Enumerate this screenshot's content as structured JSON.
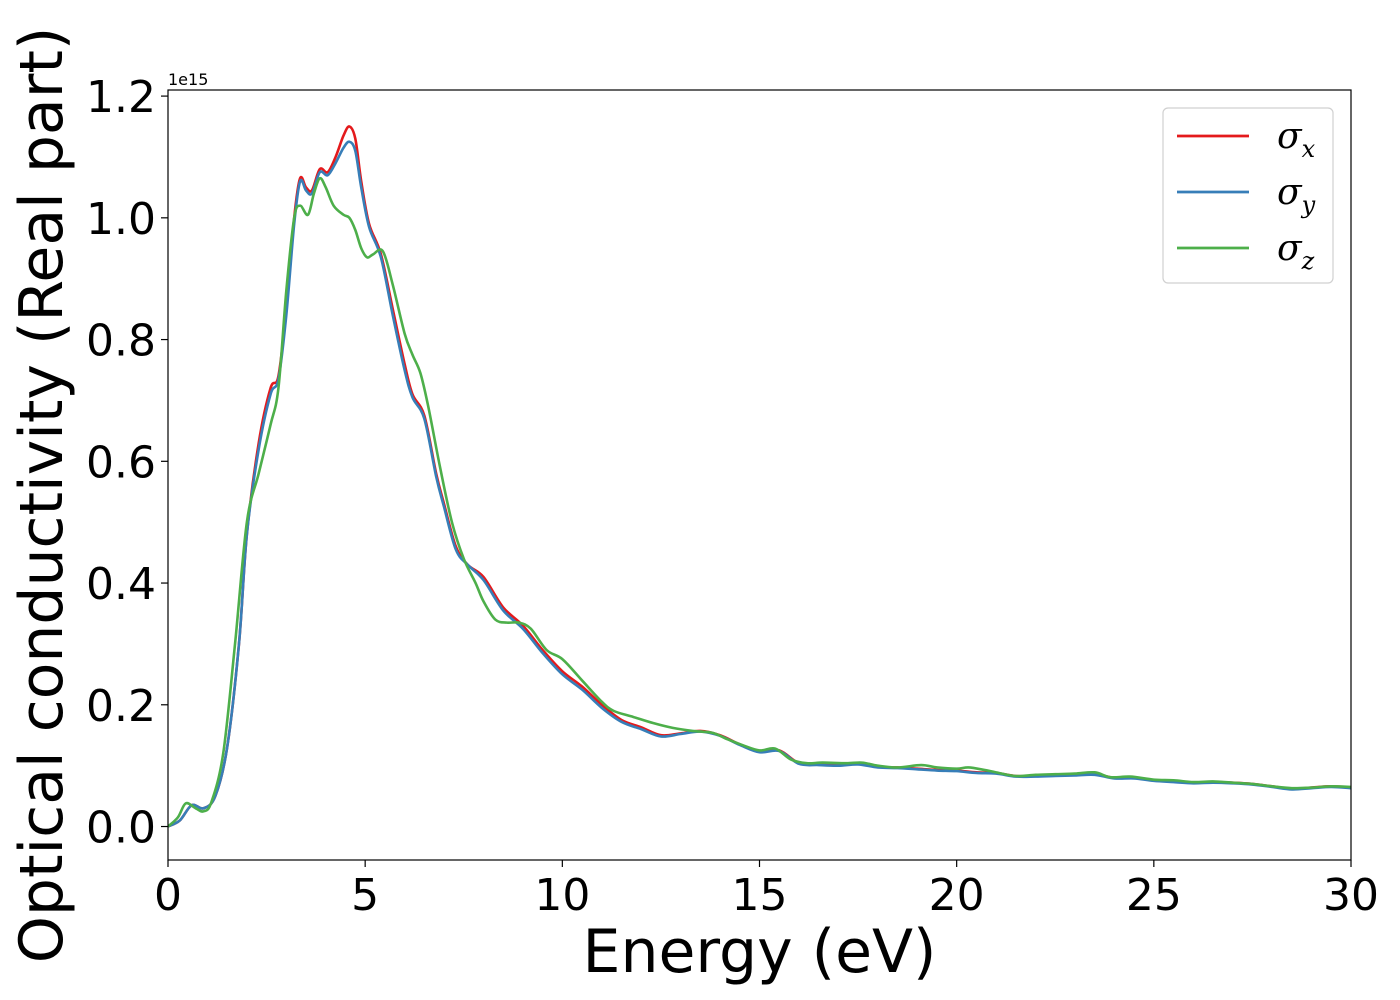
{
  "chart_data": {
    "type": "line",
    "xlabel": "Energy (eV)",
    "ylabel": "Optical conductivity (Real part)",
    "y_offset_label": "1e15",
    "xlim": [
      0,
      30
    ],
    "ylim": [
      -0.055,
      1.21
    ],
    "x_ticks": [
      0,
      5,
      10,
      15,
      20,
      25,
      30
    ],
    "x_tick_labels": [
      "0",
      "5",
      "10",
      "15",
      "20",
      "25",
      "30"
    ],
    "y_ticks": [
      0.0,
      0.2,
      0.4,
      0.6,
      0.8,
      1.0,
      1.2
    ],
    "y_tick_labels": [
      "0.0",
      "0.2",
      "0.4",
      "0.6",
      "0.8",
      "1.0",
      "1.2"
    ],
    "grid": false,
    "legend_position": "top-right",
    "series": [
      {
        "name": "σx",
        "symbol": "σ",
        "subscript": "x",
        "color": "#e41a1c",
        "points": [
          [
            0,
            0
          ],
          [
            0.3,
            0.01
          ],
          [
            0.6,
            0.035
          ],
          [
            0.9,
            0.03
          ],
          [
            1.2,
            0.05
          ],
          [
            1.5,
            0.13
          ],
          [
            1.8,
            0.3
          ],
          [
            2.0,
            0.48
          ],
          [
            2.3,
            0.63
          ],
          [
            2.6,
            0.72
          ],
          [
            2.8,
            0.74
          ],
          [
            3.0,
            0.85
          ],
          [
            3.2,
            1.0
          ],
          [
            3.35,
            1.065
          ],
          [
            3.5,
            1.05
          ],
          [
            3.65,
            1.045
          ],
          [
            3.85,
            1.08
          ],
          [
            4.05,
            1.075
          ],
          [
            4.25,
            1.1
          ],
          [
            4.45,
            1.135
          ],
          [
            4.6,
            1.15
          ],
          [
            4.75,
            1.13
          ],
          [
            4.9,
            1.06
          ],
          [
            5.1,
            0.99
          ],
          [
            5.4,
            0.94
          ],
          [
            5.7,
            0.85
          ],
          [
            6.0,
            0.76
          ],
          [
            6.2,
            0.71
          ],
          [
            6.5,
            0.675
          ],
          [
            6.8,
            0.58
          ],
          [
            7.0,
            0.53
          ],
          [
            7.3,
            0.46
          ],
          [
            7.6,
            0.43
          ],
          [
            8.0,
            0.41
          ],
          [
            8.5,
            0.36
          ],
          [
            9.0,
            0.33
          ],
          [
            9.5,
            0.29
          ],
          [
            10.0,
            0.255
          ],
          [
            10.5,
            0.23
          ],
          [
            11.0,
            0.2
          ],
          [
            11.5,
            0.175
          ],
          [
            12.0,
            0.163
          ],
          [
            12.5,
            0.15
          ],
          [
            13.0,
            0.153
          ],
          [
            13.5,
            0.157
          ],
          [
            14.0,
            0.15
          ],
          [
            14.5,
            0.135
          ],
          [
            15.0,
            0.123
          ],
          [
            15.5,
            0.125
          ],
          [
            16.0,
            0.104
          ],
          [
            16.5,
            0.102
          ],
          [
            17.0,
            0.101
          ],
          [
            17.5,
            0.103
          ],
          [
            18.0,
            0.098
          ],
          [
            18.5,
            0.097
          ],
          [
            19.0,
            0.095
          ],
          [
            19.5,
            0.093
          ],
          [
            20.0,
            0.092
          ],
          [
            20.5,
            0.089
          ],
          [
            21.0,
            0.088
          ],
          [
            21.5,
            0.083
          ],
          [
            22.0,
            0.083
          ],
          [
            22.5,
            0.084
          ],
          [
            23.0,
            0.085
          ],
          [
            23.5,
            0.086
          ],
          [
            24.0,
            0.08
          ],
          [
            24.5,
            0.08
          ],
          [
            25.0,
            0.076
          ],
          [
            25.5,
            0.074
          ],
          [
            26.0,
            0.072
          ],
          [
            26.5,
            0.073
          ],
          [
            27.0,
            0.072
          ],
          [
            27.5,
            0.07
          ],
          [
            28.0,
            0.066
          ],
          [
            28.5,
            0.062
          ],
          [
            29.0,
            0.064
          ],
          [
            29.5,
            0.066
          ],
          [
            30.0,
            0.064
          ]
        ]
      },
      {
        "name": "σy",
        "symbol": "σ",
        "subscript": "y",
        "color": "#377eb8",
        "points": [
          [
            0,
            0
          ],
          [
            0.3,
            0.01
          ],
          [
            0.6,
            0.035
          ],
          [
            0.9,
            0.03
          ],
          [
            1.2,
            0.05
          ],
          [
            1.5,
            0.13
          ],
          [
            1.8,
            0.3
          ],
          [
            2.0,
            0.48
          ],
          [
            2.3,
            0.62
          ],
          [
            2.6,
            0.71
          ],
          [
            2.8,
            0.735
          ],
          [
            3.0,
            0.84
          ],
          [
            3.2,
            0.99
          ],
          [
            3.35,
            1.06
          ],
          [
            3.5,
            1.045
          ],
          [
            3.65,
            1.04
          ],
          [
            3.85,
            1.075
          ],
          [
            4.05,
            1.07
          ],
          [
            4.25,
            1.09
          ],
          [
            4.45,
            1.115
          ],
          [
            4.6,
            1.125
          ],
          [
            4.75,
            1.11
          ],
          [
            4.9,
            1.05
          ],
          [
            5.1,
            0.985
          ],
          [
            5.4,
            0.935
          ],
          [
            5.7,
            0.84
          ],
          [
            6.0,
            0.75
          ],
          [
            6.2,
            0.705
          ],
          [
            6.5,
            0.67
          ],
          [
            6.8,
            0.575
          ],
          [
            7.0,
            0.525
          ],
          [
            7.3,
            0.455
          ],
          [
            7.6,
            0.43
          ],
          [
            8.0,
            0.405
          ],
          [
            8.5,
            0.355
          ],
          [
            9.0,
            0.325
          ],
          [
            9.5,
            0.285
          ],
          [
            10.0,
            0.25
          ],
          [
            10.5,
            0.225
          ],
          [
            11.0,
            0.195
          ],
          [
            11.5,
            0.172
          ],
          [
            12.0,
            0.16
          ],
          [
            12.5,
            0.148
          ],
          [
            13.0,
            0.152
          ],
          [
            13.5,
            0.156
          ],
          [
            14.0,
            0.149
          ],
          [
            14.5,
            0.134
          ],
          [
            15.0,
            0.122
          ],
          [
            15.5,
            0.124
          ],
          [
            16.0,
            0.103
          ],
          [
            16.5,
            0.101
          ],
          [
            17.0,
            0.1
          ],
          [
            17.5,
            0.102
          ],
          [
            18.0,
            0.097
          ],
          [
            18.5,
            0.096
          ],
          [
            19.0,
            0.094
          ],
          [
            19.5,
            0.092
          ],
          [
            20.0,
            0.091
          ],
          [
            20.5,
            0.088
          ],
          [
            21.0,
            0.087
          ],
          [
            21.5,
            0.082
          ],
          [
            22.0,
            0.082
          ],
          [
            22.5,
            0.083
          ],
          [
            23.0,
            0.084
          ],
          [
            23.5,
            0.085
          ],
          [
            24.0,
            0.079
          ],
          [
            24.5,
            0.079
          ],
          [
            25.0,
            0.075
          ],
          [
            25.5,
            0.073
          ],
          [
            26.0,
            0.071
          ],
          [
            26.5,
            0.072
          ],
          [
            27.0,
            0.071
          ],
          [
            27.5,
            0.069
          ],
          [
            28.0,
            0.065
          ],
          [
            28.5,
            0.061
          ],
          [
            29.0,
            0.063
          ],
          [
            29.5,
            0.065
          ],
          [
            30.0,
            0.063
          ]
        ]
      },
      {
        "name": "σz",
        "symbol": "σ",
        "subscript": "z",
        "color": "#4daf4a",
        "points": [
          [
            0,
            0
          ],
          [
            0.25,
            0.015
          ],
          [
            0.45,
            0.038
          ],
          [
            0.7,
            0.03
          ],
          [
            0.9,
            0.025
          ],
          [
            1.1,
            0.04
          ],
          [
            1.4,
            0.12
          ],
          [
            1.7,
            0.3
          ],
          [
            2.0,
            0.5
          ],
          [
            2.3,
            0.58
          ],
          [
            2.6,
            0.66
          ],
          [
            2.8,
            0.72
          ],
          [
            3.0,
            0.88
          ],
          [
            3.2,
            1.0
          ],
          [
            3.35,
            1.02
          ],
          [
            3.55,
            1.005
          ],
          [
            3.7,
            1.04
          ],
          [
            3.85,
            1.065
          ],
          [
            4.0,
            1.05
          ],
          [
            4.2,
            1.02
          ],
          [
            4.45,
            1.005
          ],
          [
            4.6,
            1.0
          ],
          [
            4.75,
            0.98
          ],
          [
            4.9,
            0.95
          ],
          [
            5.05,
            0.935
          ],
          [
            5.2,
            0.94
          ],
          [
            5.45,
            0.945
          ],
          [
            5.7,
            0.89
          ],
          [
            6.0,
            0.81
          ],
          [
            6.2,
            0.775
          ],
          [
            6.4,
            0.745
          ],
          [
            6.6,
            0.69
          ],
          [
            6.9,
            0.59
          ],
          [
            7.2,
            0.5
          ],
          [
            7.5,
            0.44
          ],
          [
            7.8,
            0.4
          ],
          [
            8.0,
            0.37
          ],
          [
            8.3,
            0.34
          ],
          [
            8.6,
            0.335
          ],
          [
            8.9,
            0.335
          ],
          [
            9.2,
            0.325
          ],
          [
            9.6,
            0.29
          ],
          [
            10.0,
            0.275
          ],
          [
            10.5,
            0.24
          ],
          [
            11.0,
            0.205
          ],
          [
            11.3,
            0.19
          ],
          [
            11.8,
            0.18
          ],
          [
            12.3,
            0.17
          ],
          [
            12.8,
            0.162
          ],
          [
            13.3,
            0.157
          ],
          [
            13.8,
            0.154
          ],
          [
            14.2,
            0.143
          ],
          [
            14.6,
            0.133
          ],
          [
            15.0,
            0.125
          ],
          [
            15.4,
            0.128
          ],
          [
            15.8,
            0.11
          ],
          [
            16.2,
            0.104
          ],
          [
            16.6,
            0.105
          ],
          [
            17.2,
            0.104
          ],
          [
            17.6,
            0.105
          ],
          [
            18.0,
            0.1
          ],
          [
            18.5,
            0.097
          ],
          [
            19.1,
            0.101
          ],
          [
            19.5,
            0.097
          ],
          [
            20.0,
            0.095
          ],
          [
            20.3,
            0.097
          ],
          [
            20.7,
            0.093
          ],
          [
            21.0,
            0.089
          ],
          [
            21.5,
            0.083
          ],
          [
            22.0,
            0.085
          ],
          [
            22.5,
            0.086
          ],
          [
            23.0,
            0.087
          ],
          [
            23.5,
            0.089
          ],
          [
            23.9,
            0.081
          ],
          [
            24.4,
            0.082
          ],
          [
            25.0,
            0.077
          ],
          [
            25.5,
            0.076
          ],
          [
            26.0,
            0.073
          ],
          [
            26.5,
            0.074
          ],
          [
            27.0,
            0.072
          ],
          [
            27.5,
            0.07
          ],
          [
            28.0,
            0.066
          ],
          [
            28.5,
            0.063
          ],
          [
            29.0,
            0.064
          ],
          [
            29.5,
            0.066
          ],
          [
            30.0,
            0.065
          ]
        ]
      }
    ]
  }
}
